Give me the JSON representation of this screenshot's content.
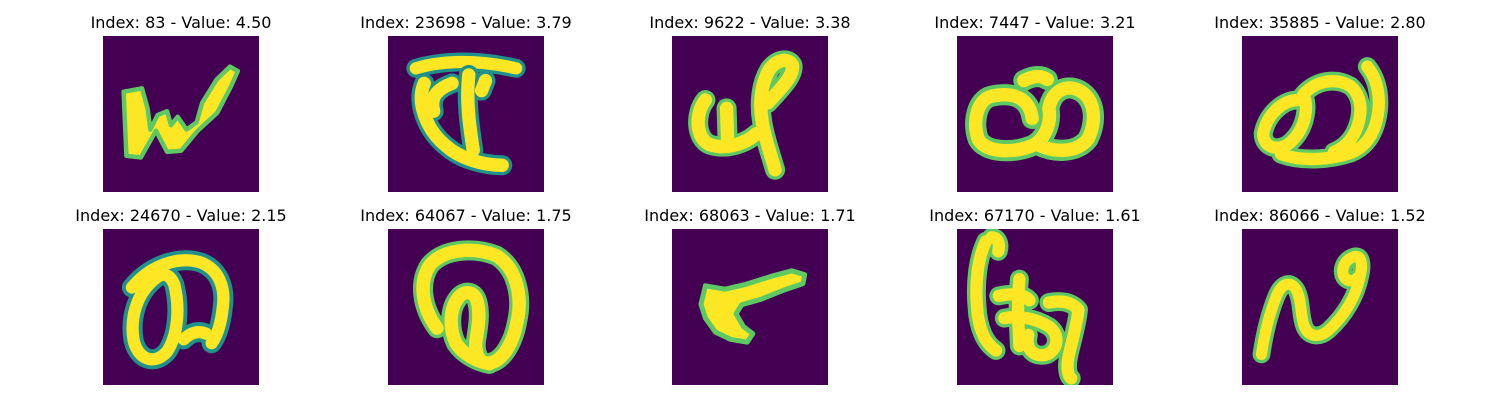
{
  "figure": {
    "background_color": "#440154",
    "glyph_colors": [
      "#fde725",
      "#21918c",
      "#5ec962",
      "#3b528b"
    ],
    "panels": [
      {
        "title": "Index: 83 - Value: 4.50",
        "image_description": "handwritten glyph resembling a cursive w",
        "glyph_icon": "glyph-w"
      },
      {
        "title": "Index: 23698 - Value: 3.79",
        "image_description": "handwritten glyph with top bar and looping stem",
        "glyph_icon": "glyph-bar-loop"
      },
      {
        "title": "Index: 9622 - Value: 3.38",
        "image_description": "handwritten glyph with hook and tall loop",
        "glyph_icon": "glyph-hook-loop"
      },
      {
        "title": "Index: 7447 - Value: 3.21",
        "image_description": "handwritten glyph with two side-by-side loops",
        "glyph_icon": "glyph-double-loop"
      },
      {
        "title": "Index: 35885 - Value: 2.80",
        "image_description": "handwritten glyph with small loop and large arch",
        "glyph_icon": "glyph-loop-arch"
      },
      {
        "title": "Index: 24670 - Value: 2.15",
        "image_description": "handwritten glyph with oval and arching stroke",
        "glyph_icon": "glyph-oval-arch"
      },
      {
        "title": "Index: 64067 - Value: 1.75",
        "image_description": "handwritten glyph with large arch and inner loop",
        "glyph_icon": "glyph-arch-inner-loop"
      },
      {
        "title": "Index: 68063 - Value: 1.71",
        "image_description": "handwritten glyph shaped like a wedge",
        "glyph_icon": "glyph-wedge"
      },
      {
        "title": "Index: 67170 - Value: 1.61",
        "image_description": "handwritten glyph with vertical stroke and tangled loops",
        "glyph_icon": "glyph-tangled"
      },
      {
        "title": "Index: 86066 - Value: 1.52",
        "image_description": "handwritten glyph with wavy stroke and dot loop",
        "glyph_icon": "glyph-wave-dot"
      }
    ]
  }
}
